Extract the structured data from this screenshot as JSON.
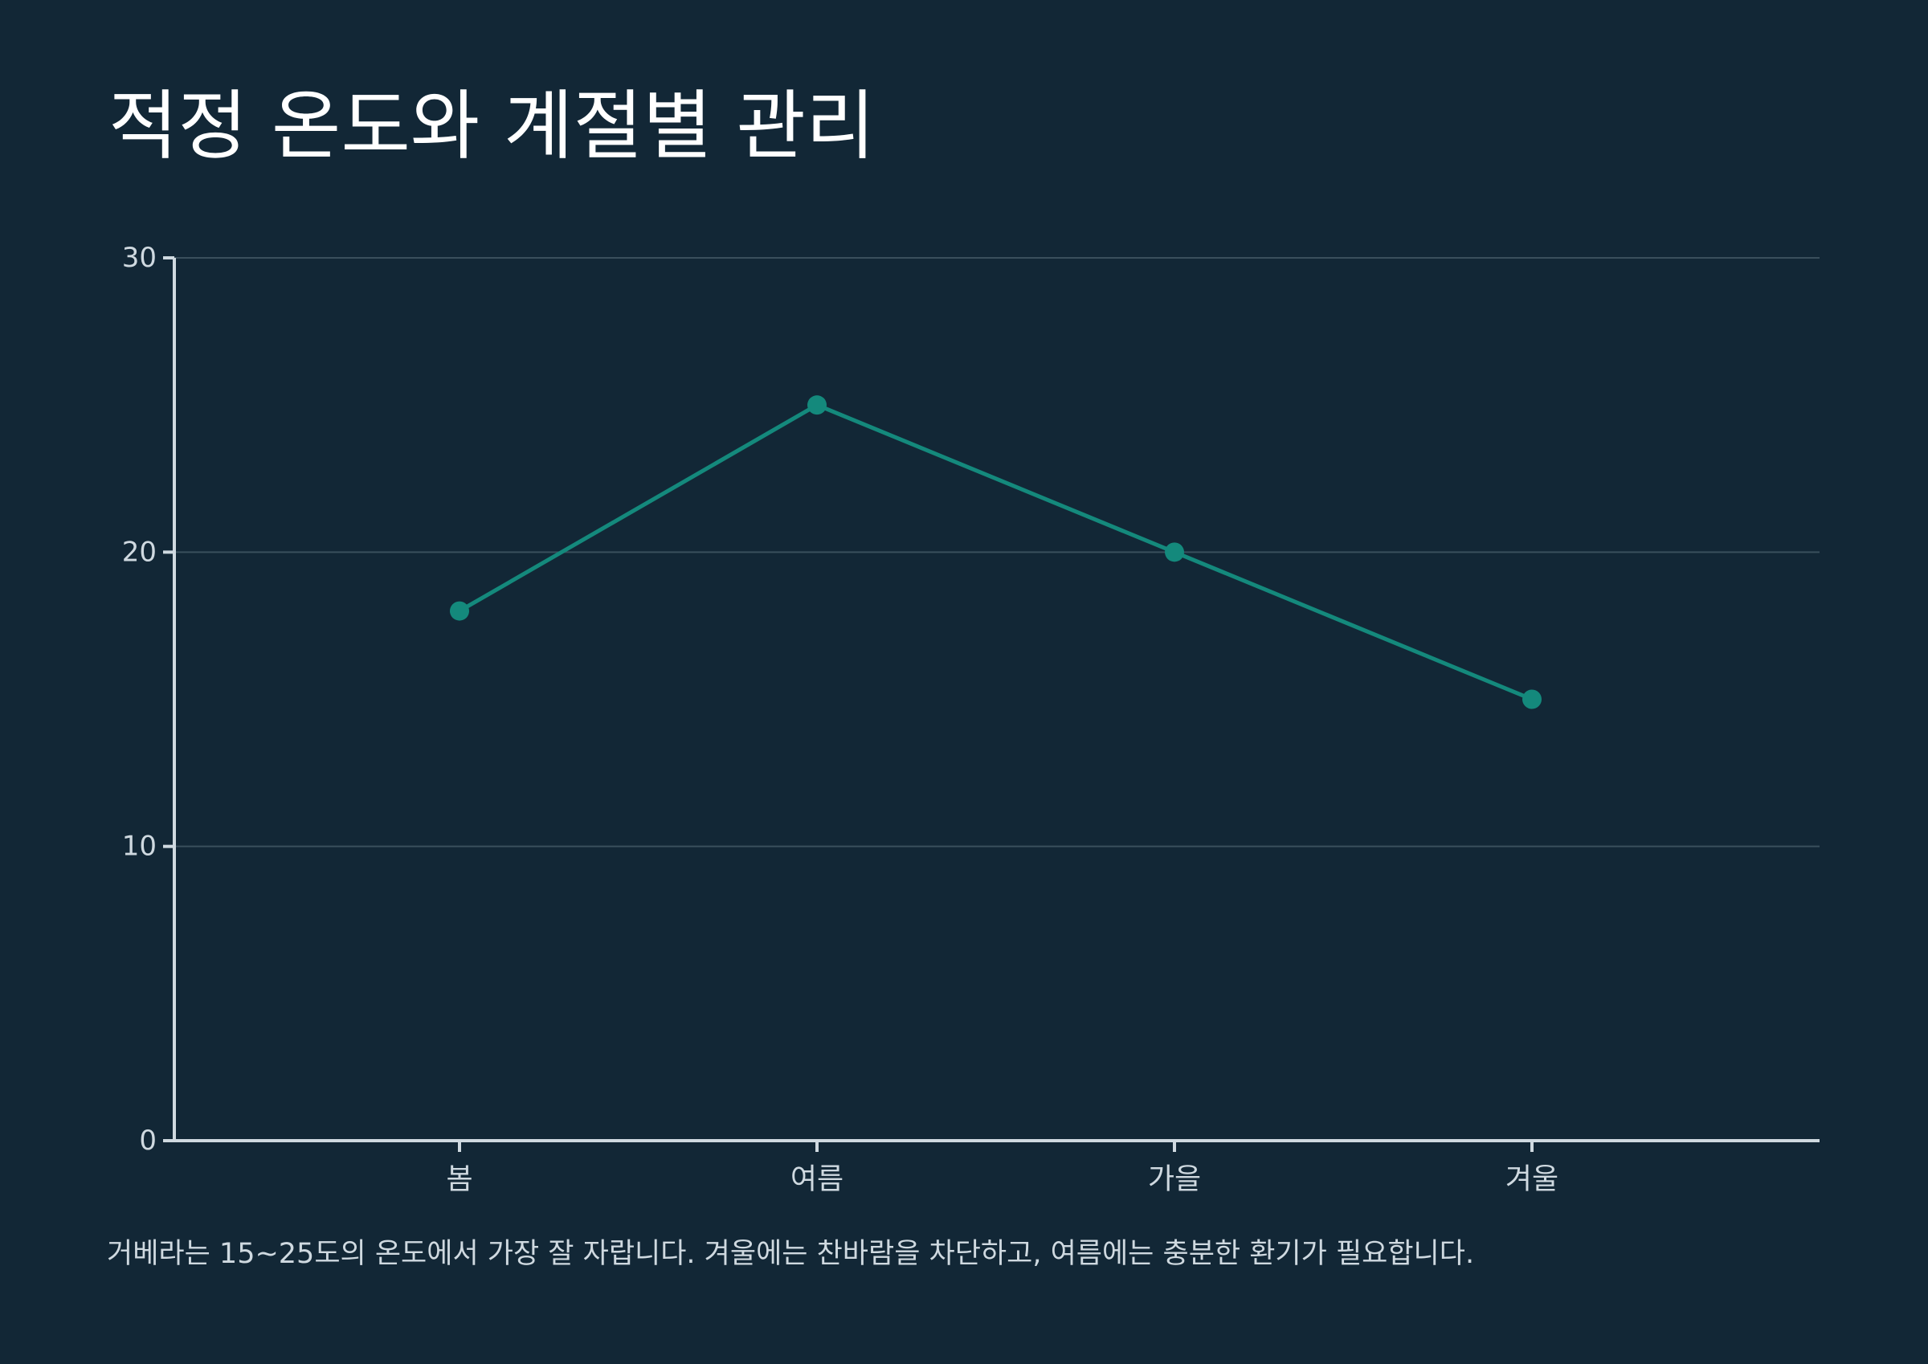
{
  "colors": {
    "background": "#122736",
    "line": "#14897c",
    "axis": "#cfd9e0",
    "grid": "#3a4f5c",
    "text": "#cfd9e0",
    "title": "#ffffff"
  },
  "chart_data": {
    "type": "line",
    "title": "적정 온도와 계절별 관리",
    "xlabel": "",
    "ylabel": "",
    "categories": [
      "봄",
      "여름",
      "가을",
      "겨울"
    ],
    "series": [
      {
        "values": [
          18,
          25,
          20,
          15
        ]
      }
    ],
    "ylim": [
      0,
      30
    ],
    "yticks": [
      0,
      10,
      20,
      30
    ],
    "ytick_labels": [
      "0",
      "10",
      "20",
      "30"
    ],
    "grid": true,
    "legend": "none"
  },
  "footnote": "거베라는 15~25도의 온도에서 가장 잘 자랍니다. 겨울에는 찬바람을 차단하고, 여름에는 충분한 환기가 필요합니다."
}
